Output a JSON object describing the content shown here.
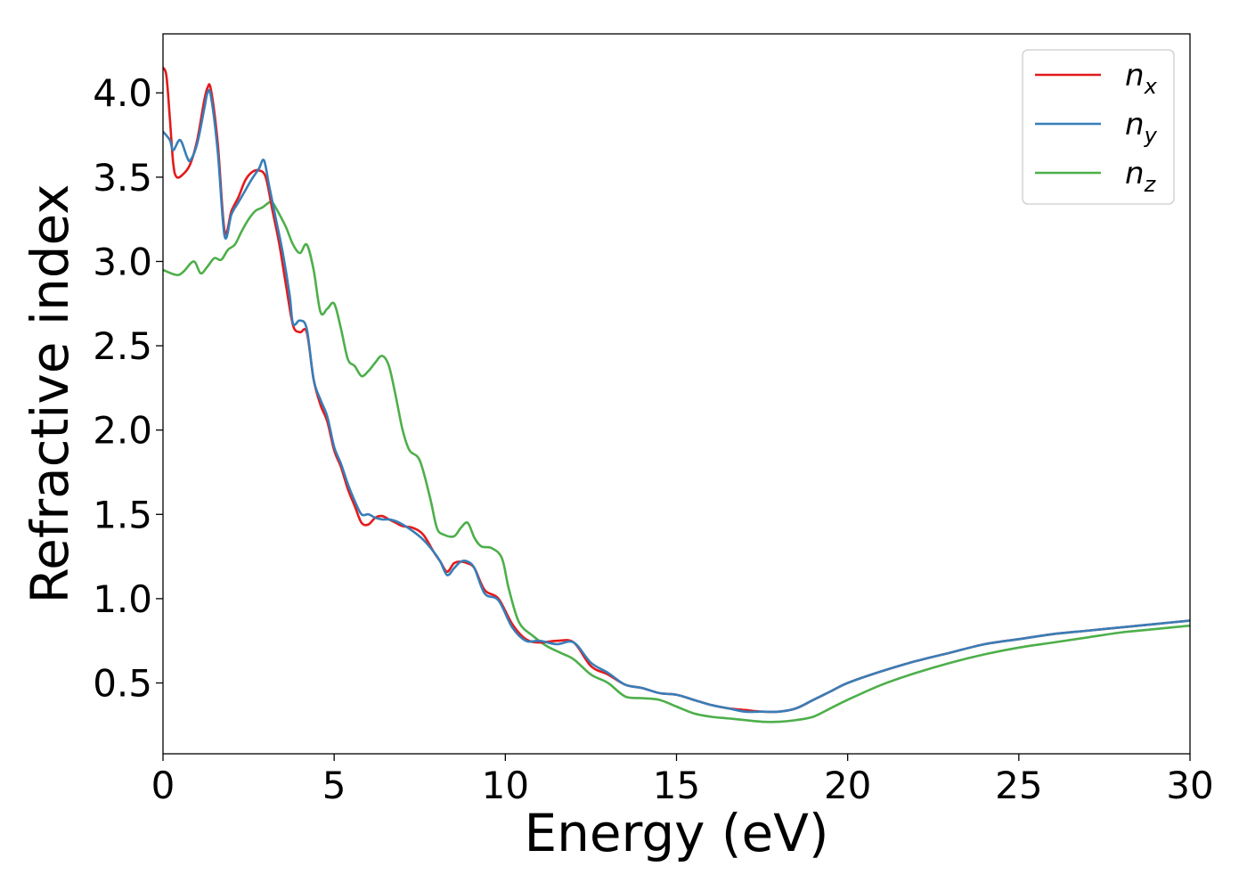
{
  "chart_data": {
    "type": "line",
    "xlabel": "Energy (eV)",
    "ylabel": "Refractive index",
    "xlim": [
      0,
      30
    ],
    "ylim": [
      0.08,
      4.35
    ],
    "xticks": [
      0,
      5,
      10,
      15,
      20,
      25,
      30
    ],
    "xtick_labels": [
      "0",
      "5",
      "10",
      "15",
      "20",
      "25",
      "30"
    ],
    "yticks": [
      0.5,
      1.0,
      1.5,
      2.0,
      2.5,
      3.0,
      3.5,
      4.0
    ],
    "ytick_labels": [
      "0.5",
      "1.0",
      "1.5",
      "2.0",
      "2.5",
      "3.0",
      "3.5",
      "4.0"
    ],
    "grid": false,
    "legend_position": "top-right",
    "series": [
      {
        "name": "n_x",
        "label_base": "n",
        "label_sub": "x",
        "color": "#e41a1c",
        "x": [
          0,
          0.1,
          0.2,
          0.3,
          0.4,
          0.6,
          0.8,
          1.0,
          1.2,
          1.3,
          1.4,
          1.6,
          1.8,
          2.0,
          2.2,
          2.4,
          2.6,
          2.8,
          3.0,
          3.2,
          3.4,
          3.6,
          3.8,
          4.0,
          4.2,
          4.4,
          4.6,
          4.8,
          5.0,
          5.2,
          5.4,
          5.6,
          5.8,
          6.0,
          6.2,
          6.4,
          6.6,
          6.8,
          7.0,
          7.3,
          7.6,
          7.9,
          8.1,
          8.3,
          8.5,
          8.7,
          8.9,
          9.1,
          9.4,
          9.8,
          10.2,
          10.6,
          11.0,
          11.5,
          12.0,
          12.5,
          13.0,
          13.5,
          14.0,
          14.5,
          15.0,
          15.5,
          16.0,
          16.5,
          17.0,
          17.5,
          18.0,
          18.5,
          19.0,
          19.5,
          20.0,
          21.0,
          22.0,
          23.0,
          24.0,
          25.0,
          26.0,
          27.0,
          28.0,
          29.0,
          30.0
        ],
        "y": [
          4.15,
          4.1,
          3.85,
          3.58,
          3.5,
          3.52,
          3.58,
          3.72,
          3.95,
          4.03,
          4.02,
          3.7,
          3.18,
          3.3,
          3.38,
          3.48,
          3.53,
          3.54,
          3.5,
          3.3,
          3.1,
          2.85,
          2.62,
          2.58,
          2.58,
          2.3,
          2.15,
          2.05,
          1.88,
          1.78,
          1.65,
          1.55,
          1.45,
          1.44,
          1.48,
          1.49,
          1.47,
          1.45,
          1.43,
          1.42,
          1.38,
          1.28,
          1.22,
          1.16,
          1.21,
          1.22,
          1.21,
          1.18,
          1.05,
          1.0,
          0.85,
          0.76,
          0.74,
          0.75,
          0.74,
          0.6,
          0.55,
          0.49,
          0.47,
          0.44,
          0.43,
          0.4,
          0.37,
          0.35,
          0.34,
          0.33,
          0.33,
          0.35,
          0.4,
          0.45,
          0.5,
          0.57,
          0.63,
          0.68,
          0.73,
          0.76,
          0.79,
          0.81,
          0.83,
          0.85,
          0.87
        ]
      },
      {
        "name": "n_y",
        "label_base": "n",
        "label_sub": "y",
        "color": "#377eb8",
        "x": [
          0,
          0.2,
          0.3,
          0.5,
          0.7,
          0.8,
          1.0,
          1.2,
          1.3,
          1.4,
          1.6,
          1.8,
          2.0,
          2.2,
          2.4,
          2.6,
          2.8,
          2.95,
          3.1,
          3.3,
          3.5,
          3.7,
          3.8,
          4.0,
          4.2,
          4.4,
          4.6,
          4.8,
          5.0,
          5.2,
          5.4,
          5.6,
          5.8,
          6.0,
          6.2,
          6.4,
          6.6,
          6.8,
          7.0,
          7.3,
          7.6,
          7.9,
          8.1,
          8.3,
          8.5,
          8.7,
          8.9,
          9.1,
          9.4,
          9.8,
          10.2,
          10.6,
          11.0,
          11.5,
          12.0,
          12.5,
          13.0,
          13.5,
          14.0,
          14.5,
          15.0,
          15.5,
          16.0,
          16.5,
          17.0,
          17.5,
          18.0,
          18.5,
          19.0,
          19.5,
          20.0,
          21.0,
          22.0,
          23.0,
          24.0,
          25.0,
          26.0,
          27.0,
          28.0,
          29.0,
          30.0
        ],
        "y": [
          3.77,
          3.72,
          3.66,
          3.72,
          3.62,
          3.6,
          3.7,
          3.9,
          4.0,
          3.98,
          3.65,
          3.15,
          3.28,
          3.35,
          3.42,
          3.49,
          3.55,
          3.6,
          3.45,
          3.25,
          3.05,
          2.8,
          2.63,
          2.65,
          2.6,
          2.3,
          2.18,
          2.08,
          1.9,
          1.8,
          1.68,
          1.58,
          1.5,
          1.5,
          1.48,
          1.47,
          1.47,
          1.46,
          1.44,
          1.4,
          1.35,
          1.28,
          1.22,
          1.14,
          1.18,
          1.22,
          1.22,
          1.18,
          1.03,
          0.99,
          0.83,
          0.75,
          0.75,
          0.73,
          0.74,
          0.62,
          0.56,
          0.49,
          0.47,
          0.44,
          0.43,
          0.4,
          0.37,
          0.35,
          0.33,
          0.33,
          0.33,
          0.35,
          0.4,
          0.45,
          0.5,
          0.57,
          0.63,
          0.68,
          0.73,
          0.76,
          0.79,
          0.81,
          0.83,
          0.85,
          0.87
        ]
      },
      {
        "name": "n_z",
        "label_base": "n",
        "label_sub": "z",
        "color": "#4daf4a",
        "x": [
          0,
          0.4,
          0.6,
          0.9,
          1.1,
          1.3,
          1.5,
          1.7,
          1.9,
          2.1,
          2.3,
          2.5,
          2.7,
          2.9,
          3.1,
          3.2,
          3.4,
          3.6,
          3.8,
          4.0,
          4.2,
          4.4,
          4.6,
          4.8,
          5.0,
          5.2,
          5.4,
          5.6,
          5.8,
          6.0,
          6.2,
          6.4,
          6.6,
          6.8,
          7.0,
          7.2,
          7.5,
          7.8,
          8.0,
          8.2,
          8.5,
          8.7,
          8.9,
          9.1,
          9.3,
          9.6,
          9.9,
          10.1,
          10.4,
          10.8,
          11.2,
          11.6,
          12.0,
          12.5,
          13.0,
          13.5,
          14.0,
          14.5,
          15.0,
          15.5,
          16.0,
          16.5,
          17.0,
          17.5,
          18.0,
          18.5,
          19.0,
          19.5,
          20.0,
          21.0,
          22.0,
          23.0,
          24.0,
          25.0,
          26.0,
          27.0,
          28.0,
          29.0,
          30.0
        ],
        "y": [
          2.95,
          2.92,
          2.94,
          3.0,
          2.93,
          2.97,
          3.02,
          3.01,
          3.07,
          3.1,
          3.18,
          3.25,
          3.3,
          3.32,
          3.35,
          3.35,
          3.28,
          3.2,
          3.1,
          3.05,
          3.1,
          2.95,
          2.7,
          2.72,
          2.75,
          2.6,
          2.42,
          2.38,
          2.32,
          2.35,
          2.4,
          2.44,
          2.38,
          2.2,
          2.0,
          1.88,
          1.82,
          1.6,
          1.42,
          1.38,
          1.37,
          1.42,
          1.45,
          1.36,
          1.31,
          1.3,
          1.24,
          1.06,
          0.86,
          0.78,
          0.72,
          0.68,
          0.64,
          0.55,
          0.5,
          0.42,
          0.41,
          0.4,
          0.36,
          0.32,
          0.3,
          0.29,
          0.28,
          0.27,
          0.27,
          0.28,
          0.3,
          0.35,
          0.4,
          0.49,
          0.56,
          0.62,
          0.67,
          0.71,
          0.74,
          0.77,
          0.8,
          0.82,
          0.84
        ]
      }
    ]
  }
}
